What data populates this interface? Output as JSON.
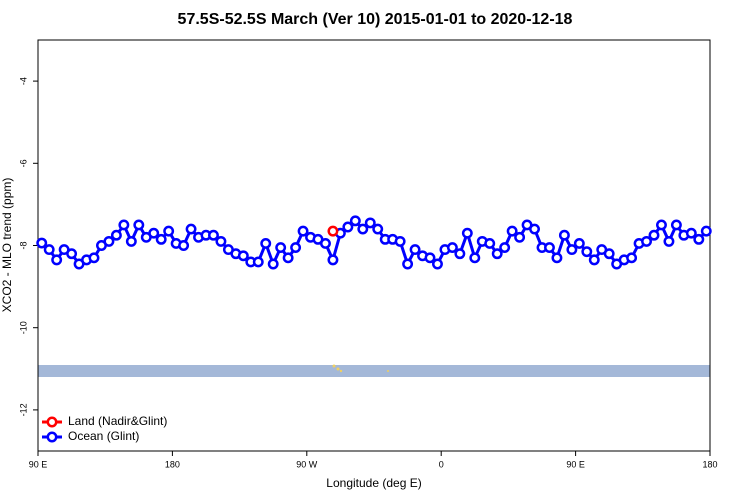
{
  "chart_data": {
    "type": "line",
    "title": "57.5S-52.5S March (Ver 10)   2015-01-01 to 2020-12-18",
    "xlabel": "Longitude (deg E)",
    "ylabel": "XCO2 - MLO trend (ppm)",
    "xlim": [
      90,
      540
    ],
    "ylim": [
      -13,
      -3
    ],
    "xticks": [
      {
        "value": 90,
        "label": "90 E"
      },
      180,
      {
        "value": 270,
        "label": "90 W"
      },
      {
        "value": 360,
        "label": "0"
      },
      {
        "value": 450,
        "label": "90 E"
      },
      {
        "value": 540,
        "label": "180"
      }
    ],
    "yticks": [
      -12,
      -10,
      -8,
      -6,
      -4
    ],
    "legend": "lower left",
    "series": [
      {
        "name": "Land (Nadir&Glint)",
        "color": "#ff0000",
        "x": [
          287.5
        ],
        "values": [
          -7.65
        ]
      },
      {
        "name": "Ocean (Glint)",
        "color": "#0000ff",
        "x": [
          92.5,
          97.5,
          102.5,
          107.5,
          112.5,
          117.5,
          122.5,
          127.5,
          132.5,
          137.5,
          142.5,
          147.5,
          152.5,
          157.5,
          162.5,
          167.5,
          172.5,
          177.5,
          182.5,
          187.5,
          192.5,
          197.5,
          202.5,
          207.5,
          212.5,
          217.5,
          222.5,
          227.5,
          232.5,
          237.5,
          242.5,
          247.5,
          252.5,
          257.5,
          262.5,
          267.5,
          272.5,
          277.5,
          282.5,
          287.5,
          292.5,
          297.5,
          302.5,
          307.5,
          312.5,
          317.5,
          322.5,
          327.5,
          332.5,
          337.5,
          342.5,
          347.5,
          352.5,
          357.5,
          362.5,
          367.5,
          372.5,
          377.5,
          382.5,
          387.5,
          392.5,
          397.5,
          402.5,
          407.5,
          412.5,
          417.5,
          422.5,
          427.5,
          432.5,
          437.5,
          442.5,
          447.5,
          452.5,
          457.5,
          462.5,
          467.5,
          472.5,
          477.5,
          482.5,
          487.5,
          492.5,
          497.5,
          502.5,
          507.5,
          512.5,
          517.5,
          522.5,
          527.5,
          532.5,
          537.5
        ],
        "values": [
          -7.94,
          -8.1,
          -8.35,
          -8.1,
          -8.2,
          -8.45,
          -8.35,
          -8.3,
          -8.0,
          -7.9,
          -7.75,
          -7.5,
          -7.9,
          -7.5,
          -7.8,
          -7.7,
          -7.85,
          -7.65,
          -7.95,
          -8.0,
          -7.6,
          -7.8,
          -7.75,
          -7.75,
          -7.9,
          -8.1,
          -8.2,
          -8.25,
          -8.4,
          -8.4,
          -7.95,
          -8.45,
          -8.05,
          -8.3,
          -8.05,
          -7.65,
          -7.8,
          -7.85,
          -7.95,
          -8.35,
          -7.7,
          -7.55,
          -7.4,
          -7.6,
          -7.45,
          -7.6,
          -7.85,
          -7.85,
          -7.9,
          -8.45,
          -8.1,
          -8.25,
          -8.3,
          -8.45,
          -8.1,
          -8.05,
          -8.2,
          -7.7,
          -8.3,
          -7.9,
          -7.95,
          -8.2,
          -8.05,
          -7.65,
          -7.8,
          -7.5,
          -7.6,
          -8.05,
          -8.05,
          -8.3,
          -7.75,
          -8.1,
          -7.95,
          -8.15,
          -8.35,
          -8.1,
          -8.2,
          -8.45,
          -8.35,
          -8.3,
          -7.95,
          -7.9,
          -7.75,
          -7.5,
          -7.9,
          -7.5,
          -7.75,
          -7.7,
          -7.85,
          -7.65
        ]
      }
    ]
  }
}
